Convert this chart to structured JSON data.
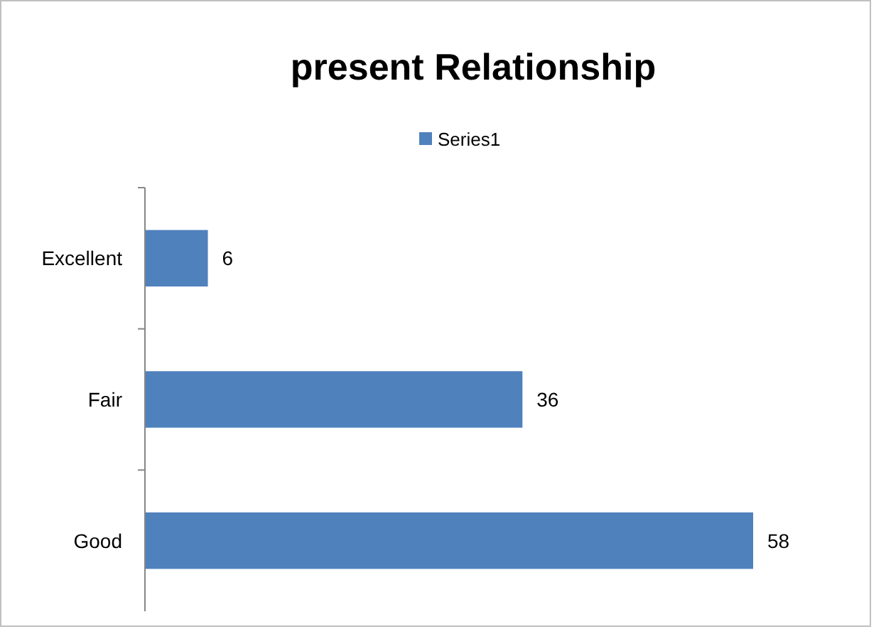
{
  "chart_data": {
    "type": "bar",
    "orientation": "horizontal",
    "title": "present Relationship",
    "categories": [
      "Excellent",
      "Fair",
      "Good"
    ],
    "series": [
      {
        "name": "Series1",
        "color": "#4f81bd",
        "values": [
          6,
          36,
          58
        ]
      }
    ],
    "data_labels": true,
    "legend": "top"
  }
}
